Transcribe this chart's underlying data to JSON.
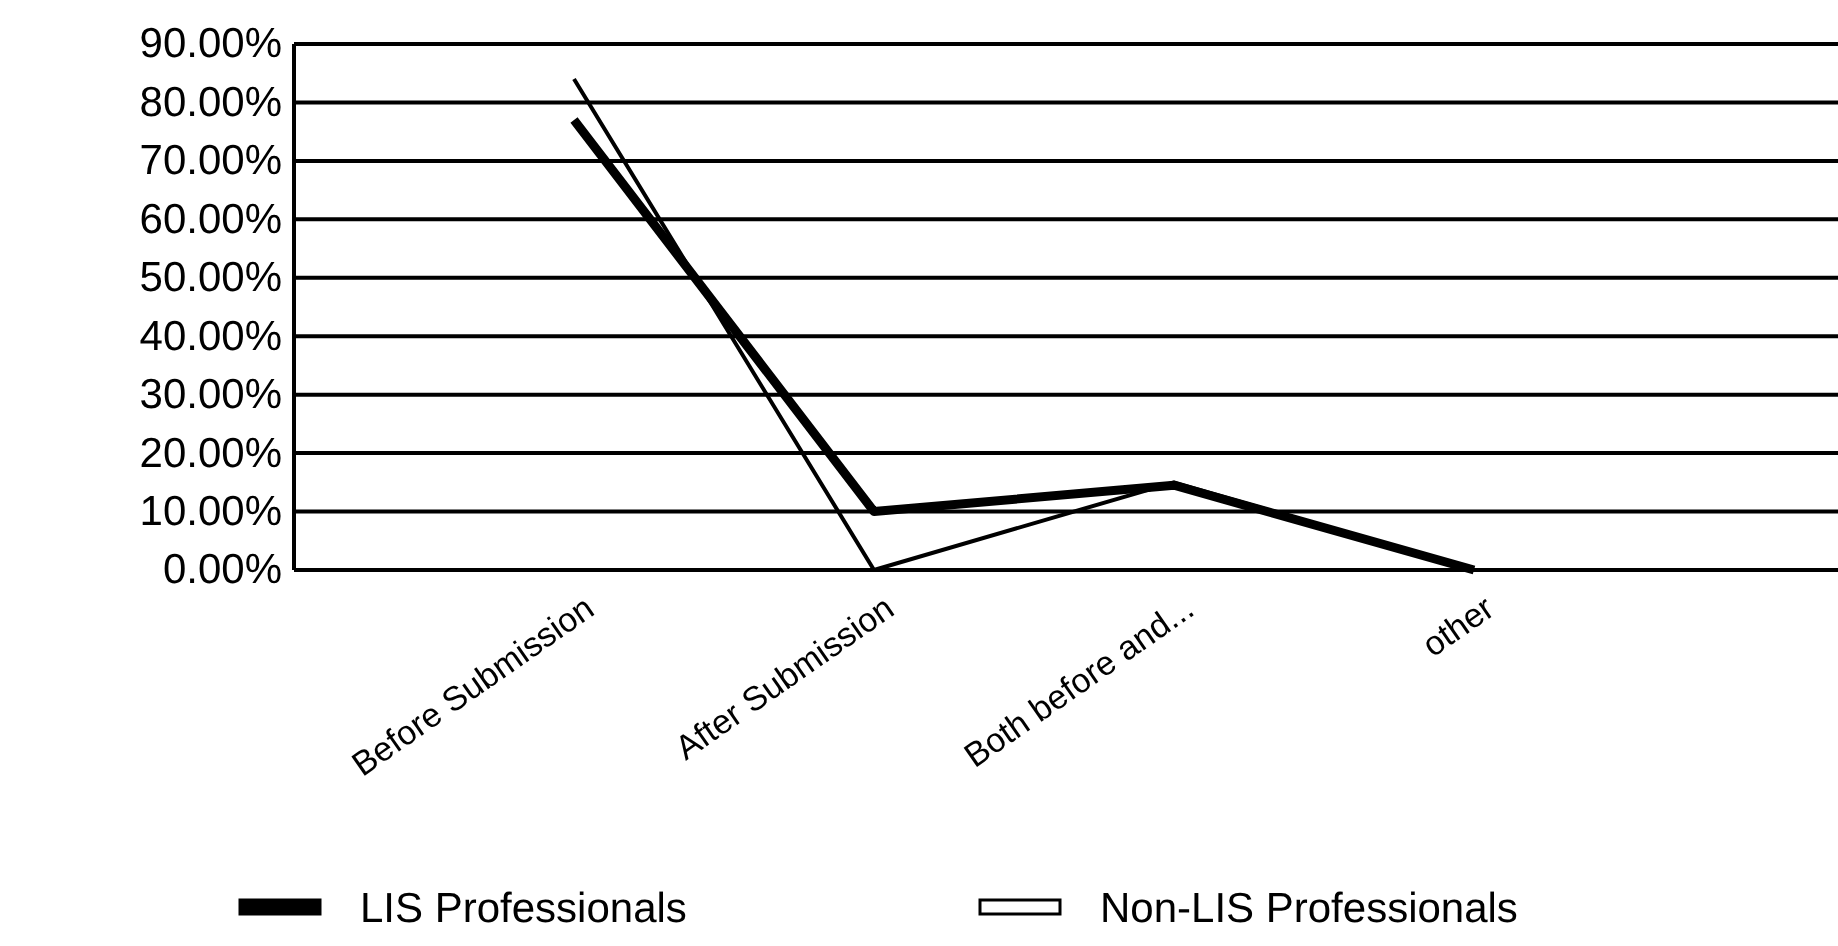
{
  "chart_data": {
    "type": "line",
    "categories": [
      "Before Submission",
      "After Submission",
      "Both before and...",
      "other"
    ],
    "series": [
      {
        "name": "LIS Professionals",
        "color": "#000000",
        "values": [
          77,
          10,
          14.5,
          0
        ]
      },
      {
        "name": "Non-LIS Professionals",
        "color": "#000000",
        "values": [
          84,
          0,
          15,
          0
        ]
      }
    ],
    "ylim": [
      0,
      90
    ],
    "yticks": [
      {
        "value": 0,
        "label": "0.00%"
      },
      {
        "value": 10,
        "label": "10.00%"
      },
      {
        "value": 20,
        "label": "20.00%"
      },
      {
        "value": 30,
        "label": "30.00%"
      },
      {
        "value": 40,
        "label": "40.00%"
      },
      {
        "value": 50,
        "label": "50.00%"
      },
      {
        "value": 60,
        "label": "60.00%"
      },
      {
        "value": 70,
        "label": "70.00%"
      },
      {
        "value": 80,
        "label": "80.00%"
      },
      {
        "value": 90,
        "label": "90.00%"
      }
    ],
    "grid": "y",
    "legend": "bottom",
    "marker": "none",
    "line_style": "solid"
  }
}
